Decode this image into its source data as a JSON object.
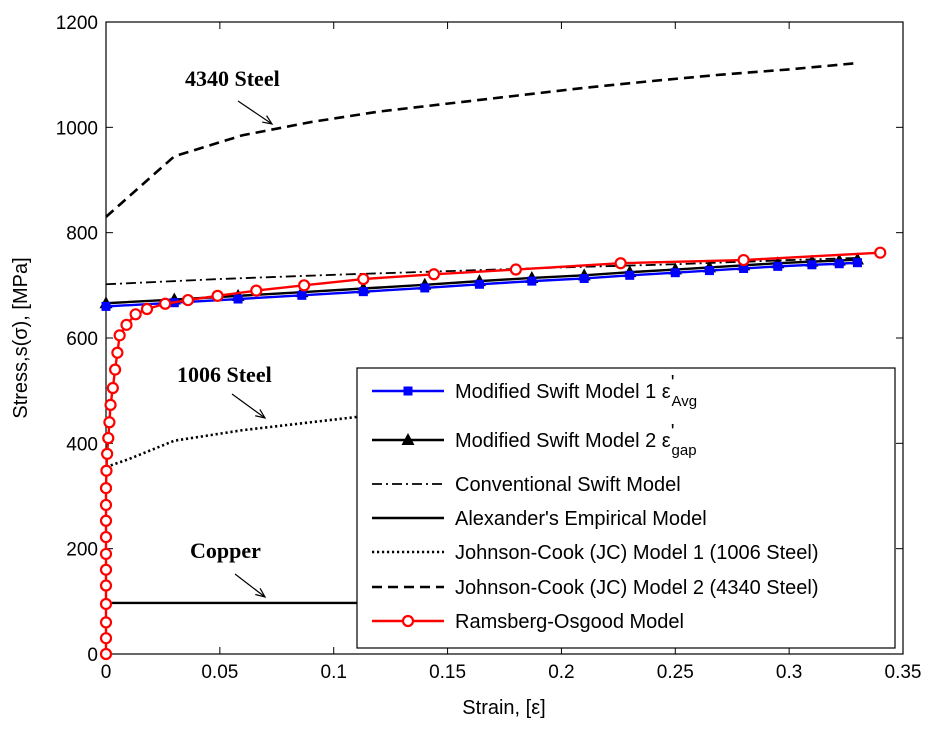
{
  "chart_data": {
    "type": "line",
    "xlabel": "Strain, [ε]",
    "ylabel": "Stress,s(σ), [MPa]",
    "xlim": [
      0,
      0.35
    ],
    "ylim": [
      0,
      1200
    ],
    "xticks": [
      "0",
      "0.05",
      "0.1",
      "0.15",
      "0.2",
      "0.25",
      "0.3",
      "0.35"
    ],
    "yticks": [
      "0",
      "200",
      "400",
      "600",
      "800",
      "1000",
      "1200"
    ],
    "grid": false,
    "legend_position": "bottom-right",
    "annotations": [
      {
        "text": "4340 Steel",
        "arrow_to": [
          0.075,
          1000
        ]
      },
      {
        "text": "1006 Steel",
        "arrow_to": [
          0.07,
          450
        ]
      },
      {
        "text": "Copper",
        "arrow_to": [
          0.07,
          97
        ]
      }
    ],
    "series": [
      {
        "name": "Modified Swift Model 1 ε'Avg",
        "legend_main": "Modified Swift Model 1 ε",
        "legend_sup": "'",
        "legend_sub": "Avg",
        "color": "#0000ff",
        "line": "solid",
        "marker": "square",
        "x": [
          0,
          0.03,
          0.058,
          0.086,
          0.113,
          0.14,
          0.164,
          0.187,
          0.21,
          0.23,
          0.25,
          0.265,
          0.28,
          0.295,
          0.31,
          0.322,
          0.33
        ],
        "y": [
          660,
          667,
          674,
          681,
          688,
          695,
          702,
          708,
          713,
          719,
          724,
          728,
          732,
          736,
          739,
          741,
          743
        ]
      },
      {
        "name": "Modified Swift Model 2 ε'gap",
        "legend_main": "Modified Swift Model 2 ε",
        "legend_sup": "'",
        "legend_sub": "gap",
        "color": "#000000",
        "line": "solid",
        "marker": "triangle",
        "x": [
          0,
          0.03,
          0.058,
          0.086,
          0.113,
          0.14,
          0.164,
          0.187,
          0.21,
          0.23,
          0.25,
          0.265,
          0.28,
          0.295,
          0.31,
          0.322,
          0.33
        ],
        "y": [
          666,
          673,
          680,
          687,
          694,
          701,
          708,
          714,
          719,
          725,
          730,
          734,
          738,
          742,
          745,
          747,
          749
        ]
      },
      {
        "name": "Conventional Swift Model",
        "color": "#000000",
        "line": "dashdot",
        "marker": "none",
        "x": [
          0,
          0.05,
          0.1,
          0.15,
          0.2,
          0.25,
          0.3,
          0.33
        ],
        "y": [
          702,
          712,
          720,
          727,
          734,
          740,
          748,
          752
        ]
      },
      {
        "name": "Alexander's Empirical Model",
        "color": "#000000",
        "line": "solid",
        "marker": "none",
        "x": [
          0,
          0.11
        ],
        "y": [
          97,
          97
        ]
      },
      {
        "name": "Johnson-Cook (JC) Model 1 (1006 Steel)",
        "color": "#000000",
        "line": "dotted",
        "marker": "none",
        "x": [
          0,
          0.01,
          0.03,
          0.06,
          0.09,
          0.11
        ],
        "y": [
          355,
          370,
          405,
          425,
          440,
          450
        ]
      },
      {
        "name": "Johnson-Cook (JC) Model 2 (4340 Steel)",
        "color": "#000000",
        "line": "dashed",
        "marker": "none",
        "x": [
          0,
          0.03,
          0.06,
          0.09,
          0.12,
          0.15,
          0.18,
          0.21,
          0.24,
          0.27,
          0.3,
          0.33
        ],
        "y": [
          830,
          945,
          985,
          1010,
          1030,
          1045,
          1060,
          1075,
          1088,
          1100,
          1110,
          1122
        ]
      },
      {
        "name": "Ramsberg-Osgood Model",
        "color": "#ff0000",
        "line": "solid",
        "marker": "circle",
        "x": [
          0,
          0,
          0,
          0,
          0,
          0,
          0,
          0,
          0,
          0,
          0,
          0.0002,
          0.0005,
          0.001,
          0.0015,
          0.002,
          0.003,
          0.004,
          0.005,
          0.006,
          0.009,
          0.013,
          0.018,
          0.026,
          0.036,
          0.049,
          0.066,
          0.087,
          0.113,
          0.144,
          0.18,
          0.226,
          0.28,
          0.34
        ],
        "y": [
          0,
          30,
          60,
          95,
          130,
          160,
          190,
          222,
          253,
          283,
          315,
          348,
          380,
          410,
          440,
          473,
          505,
          540,
          572,
          605,
          625,
          645,
          655,
          665,
          672,
          680,
          690,
          700,
          712,
          721,
          730,
          742,
          748,
          762
        ]
      }
    ]
  }
}
